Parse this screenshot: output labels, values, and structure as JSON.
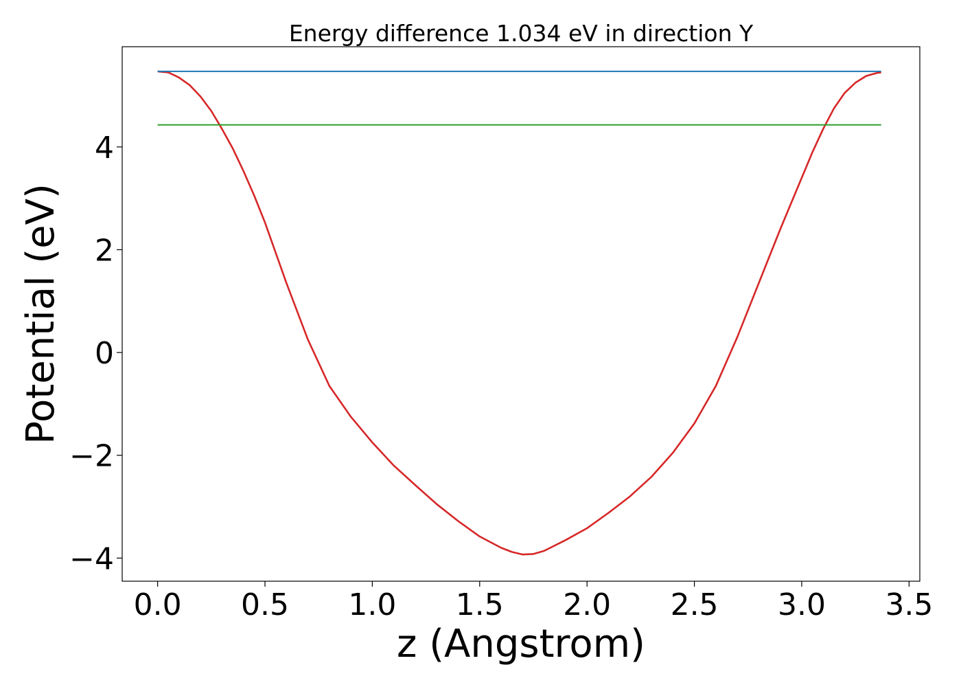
{
  "chart_data": {
    "type": "line",
    "title": "Energy difference 1.034 eV in direction Y",
    "xlabel": "z (Angstrom)",
    "ylabel": "Potential (eV)",
    "xlim": [
      -0.165,
      3.55
    ],
    "ylim": [
      -4.45,
      5.95
    ],
    "xticks": [
      0.0,
      0.5,
      1.0,
      1.5,
      2.0,
      2.5,
      3.0,
      3.5
    ],
    "xtick_labels": [
      "0.0",
      "0.5",
      "1.0",
      "1.5",
      "2.0",
      "2.5",
      "3.0",
      "3.5"
    ],
    "yticks": [
      -4,
      -2,
      0,
      2,
      4
    ],
    "ytick_labels": [
      "−4",
      "−2",
      "0",
      "2",
      "4"
    ],
    "grid": false,
    "series": [
      {
        "color": "#d62728",
        "x": [
          0.0,
          0.05,
          0.1,
          0.15,
          0.2,
          0.25,
          0.3,
          0.35,
          0.4,
          0.45,
          0.5,
          0.6,
          0.7,
          0.8,
          0.9,
          1.0,
          1.1,
          1.2,
          1.3,
          1.4,
          1.5,
          1.6,
          1.65,
          1.7,
          1.75,
          1.8,
          1.9,
          2.0,
          2.1,
          2.2,
          2.3,
          2.4,
          2.5,
          2.6,
          2.7,
          2.8,
          2.9,
          3.0,
          3.05,
          3.1,
          3.15,
          3.2,
          3.25,
          3.3,
          3.35,
          3.37
        ],
        "y": [
          5.47,
          5.45,
          5.35,
          5.2,
          4.98,
          4.7,
          4.35,
          3.97,
          3.53,
          3.05,
          2.53,
          1.35,
          0.25,
          -0.65,
          -1.25,
          -1.75,
          -2.2,
          -2.58,
          -2.95,
          -3.28,
          -3.58,
          -3.8,
          -3.88,
          -3.93,
          -3.92,
          -3.86,
          -3.65,
          -3.42,
          -3.12,
          -2.8,
          -2.42,
          -1.95,
          -1.38,
          -0.65,
          0.3,
          1.35,
          2.4,
          3.4,
          3.9,
          4.35,
          4.75,
          5.05,
          5.25,
          5.38,
          5.44,
          5.45
        ]
      },
      {
        "color": "#1f77b4",
        "x": [
          0.0,
          3.37
        ],
        "y": [
          5.47,
          5.47
        ]
      },
      {
        "color": "#2ca02c",
        "x": [
          0.0,
          3.37
        ],
        "y": [
          4.43,
          4.43
        ]
      }
    ]
  }
}
